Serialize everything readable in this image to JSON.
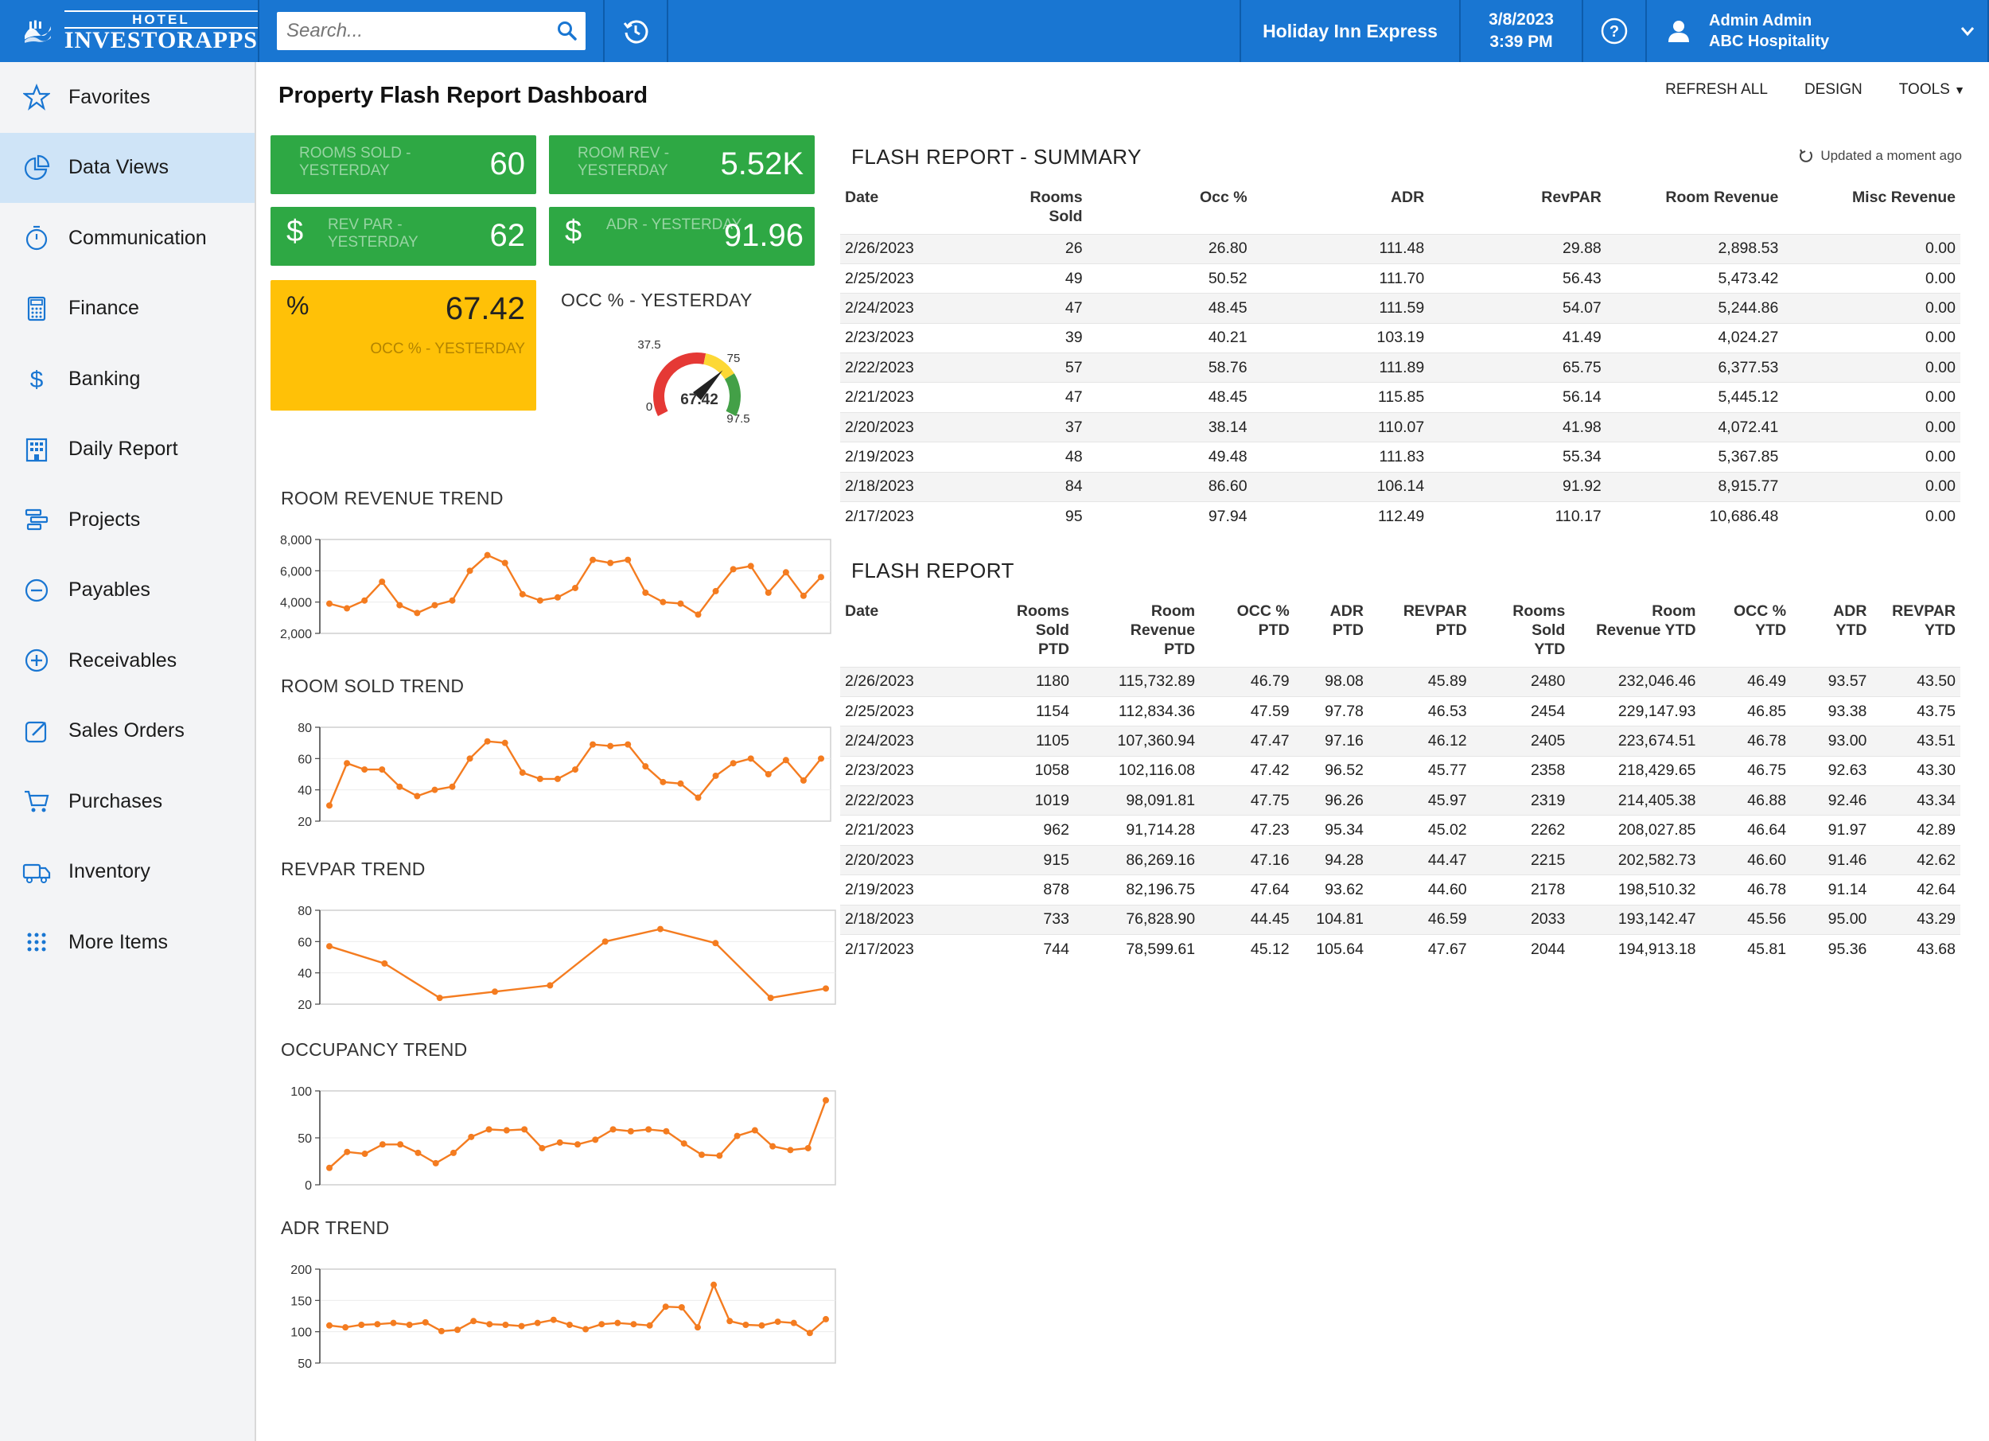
{
  "brand": {
    "top": "HOTEL",
    "bottom": "INVESTORAPPS"
  },
  "search": {
    "placeholder": "Search..."
  },
  "header": {
    "property": "Holiday Inn Express",
    "date": "3/8/2023",
    "time": "3:39 PM",
    "user_name": "Admin Admin",
    "company": "ABC Hospitality"
  },
  "sidebar": {
    "items": [
      {
        "label": "Favorites",
        "icon": "star-icon"
      },
      {
        "label": "Data Views",
        "icon": "pie-chart-icon"
      },
      {
        "label": "Communication",
        "icon": "stopwatch-icon"
      },
      {
        "label": "Finance",
        "icon": "calculator-icon"
      },
      {
        "label": "Banking",
        "icon": "dollar-icon"
      },
      {
        "label": "Daily Report",
        "icon": "building-icon"
      },
      {
        "label": "Projects",
        "icon": "projects-icon"
      },
      {
        "label": "Payables",
        "icon": "minus-circle-icon"
      },
      {
        "label": "Receivables",
        "icon": "plus-circle-icon"
      },
      {
        "label": "Sales Orders",
        "icon": "edit-icon"
      },
      {
        "label": "Purchases",
        "icon": "cart-icon"
      },
      {
        "label": "Inventory",
        "icon": "truck-icon"
      },
      {
        "label": "More Items",
        "icon": "grid-dots-icon"
      }
    ],
    "active_index": 1
  },
  "page": {
    "title": "Property Flash Report Dashboard",
    "refresh_all": "REFRESH ALL",
    "design": "DESIGN",
    "tools": "TOOLS"
  },
  "kpis": {
    "rooms_sold": {
      "label": "ROOMS SOLD - YESTERDAY",
      "value": "60"
    },
    "room_rev": {
      "label": "ROOM REV - YESTERDAY",
      "value": "5.52K"
    },
    "revpar": {
      "label": "REV PAR - YESTERDAY",
      "value": "62"
    },
    "adr": {
      "label": "ADR - YESTERDAY",
      "value": "91.96"
    },
    "occ": {
      "symbol": "%",
      "value": "67.42",
      "label": "OCC % - YESTERDAY"
    },
    "colors": {
      "green": "#2ea844",
      "yellow": "#ffc107"
    }
  },
  "gauge": {
    "title": "OCC % - YESTERDAY",
    "value": "67.42",
    "numeric_value": 67.42,
    "min_label": "0",
    "mid_label": "37.5",
    "upper_label": "75",
    "max_label": "97.5",
    "min": 0,
    "max": 97.5
  },
  "charts": {
    "room_revenue": {
      "title": "ROOM REVENUE TREND",
      "ticks": [
        "8,000",
        "6,000",
        "4,000",
        "2,000"
      ]
    },
    "room_sold": {
      "title": "ROOM SOLD TREND",
      "ticks": [
        "80",
        "60",
        "40",
        "20"
      ]
    },
    "revpar": {
      "title": "REVPAR TREND",
      "ticks": [
        "80",
        "60",
        "40",
        "20"
      ]
    },
    "occupancy": {
      "title": "OCCUPANCY TREND",
      "ticks": [
        "100",
        "50",
        "0"
      ]
    },
    "adr": {
      "title": "ADR TREND",
      "ticks": [
        "200",
        "150",
        "100",
        "50"
      ]
    }
  },
  "chart_data": [
    {
      "type": "line",
      "title": "ROOM REVENUE TREND",
      "ylim": [
        2000,
        8000
      ],
      "values": [
        3900,
        3600,
        4100,
        5300,
        3800,
        3300,
        3800,
        4100,
        6000,
        7000,
        6500,
        4500,
        4100,
        4300,
        4900,
        6700,
        6500,
        6700,
        4600,
        4000,
        3900,
        3200,
        4700,
        6100,
        6300,
        4600,
        5900,
        4400,
        5600
      ]
    },
    {
      "type": "line",
      "title": "ROOM SOLD TREND",
      "ylim": [
        20,
        80
      ],
      "values": [
        30,
        57,
        53,
        53,
        42,
        36,
        40,
        42,
        60,
        71,
        70,
        51,
        47,
        47,
        53,
        69,
        68,
        69,
        55,
        45,
        44,
        35,
        49,
        57,
        60,
        50,
        59,
        46,
        60
      ]
    },
    {
      "type": "line",
      "title": "REVPAR TREND",
      "ylim": [
        20,
        80
      ],
      "values": [
        57,
        46,
        24,
        28,
        32,
        60,
        68,
        59,
        24,
        30
      ]
    },
    {
      "type": "line",
      "title": "OCCUPANCY TREND",
      "ylim": [
        0,
        100
      ],
      "values": [
        18,
        35,
        33,
        43,
        43,
        34,
        23,
        34,
        51,
        59,
        58,
        59,
        39,
        45,
        43,
        48,
        59,
        57,
        59,
        57,
        44,
        32,
        31,
        52,
        58,
        41,
        37,
        39,
        90
      ]
    },
    {
      "type": "line",
      "title": "ADR TREND",
      "ylim": [
        50,
        200
      ],
      "values": [
        110,
        107,
        111,
        112,
        114,
        111,
        115,
        101,
        103,
        117,
        112,
        111,
        109,
        114,
        119,
        111,
        104,
        112,
        114,
        112,
        110,
        140,
        139,
        107,
        175,
        117,
        111,
        110,
        116,
        114,
        98,
        120
      ]
    }
  ],
  "summary": {
    "title": "FLASH REPORT - SUMMARY",
    "updated": "Updated a moment ago",
    "columns": [
      "Date",
      "Rooms Sold",
      "Occ %",
      "ADR",
      "RevPAR",
      "Room Revenue",
      "Misc Revenue"
    ],
    "rows": [
      [
        "2/26/2023",
        "26",
        "26.80",
        "111.48",
        "29.88",
        "2,898.53",
        "0.00"
      ],
      [
        "2/25/2023",
        "49",
        "50.52",
        "111.70",
        "56.43",
        "5,473.42",
        "0.00"
      ],
      [
        "2/24/2023",
        "47",
        "48.45",
        "111.59",
        "54.07",
        "5,244.86",
        "0.00"
      ],
      [
        "2/23/2023",
        "39",
        "40.21",
        "103.19",
        "41.49",
        "4,024.27",
        "0.00"
      ],
      [
        "2/22/2023",
        "57",
        "58.76",
        "111.89",
        "65.75",
        "6,377.53",
        "0.00"
      ],
      [
        "2/21/2023",
        "47",
        "48.45",
        "115.85",
        "56.14",
        "5,445.12",
        "0.00"
      ],
      [
        "2/20/2023",
        "37",
        "38.14",
        "110.07",
        "41.98",
        "4,072.41",
        "0.00"
      ],
      [
        "2/19/2023",
        "48",
        "49.48",
        "111.83",
        "55.34",
        "5,367.85",
        "0.00"
      ],
      [
        "2/18/2023",
        "84",
        "86.60",
        "106.14",
        "91.92",
        "8,915.77",
        "0.00"
      ],
      [
        "2/17/2023",
        "95",
        "97.94",
        "112.49",
        "110.17",
        "10,686.48",
        "0.00"
      ]
    ]
  },
  "flash": {
    "title": "FLASH REPORT",
    "columns": [
      "Date",
      "Rooms Sold PTD",
      "Room Revenue PTD",
      "OCC % PTD",
      "ADR PTD",
      "REVPAR PTD",
      "Rooms Sold YTD",
      "Room Revenue YTD",
      "OCC % YTD",
      "ADR YTD",
      "REVPAR YTD"
    ],
    "rows": [
      [
        "2/26/2023",
        "1180",
        "115,732.89",
        "46.79",
        "98.08",
        "45.89",
        "2480",
        "232,046.46",
        "46.49",
        "93.57",
        "43.50"
      ],
      [
        "2/25/2023",
        "1154",
        "112,834.36",
        "47.59",
        "97.78",
        "46.53",
        "2454",
        "229,147.93",
        "46.85",
        "93.38",
        "43.75"
      ],
      [
        "2/24/2023",
        "1105",
        "107,360.94",
        "47.47",
        "97.16",
        "46.12",
        "2405",
        "223,674.51",
        "46.78",
        "93.00",
        "43.51"
      ],
      [
        "2/23/2023",
        "1058",
        "102,116.08",
        "47.42",
        "96.52",
        "45.77",
        "2358",
        "218,429.65",
        "46.75",
        "92.63",
        "43.30"
      ],
      [
        "2/22/2023",
        "1019",
        "98,091.81",
        "47.75",
        "96.26",
        "45.97",
        "2319",
        "214,405.38",
        "46.88",
        "92.46",
        "43.34"
      ],
      [
        "2/21/2023",
        "962",
        "91,714.28",
        "47.23",
        "95.34",
        "45.02",
        "2262",
        "208,027.85",
        "46.64",
        "91.97",
        "42.89"
      ],
      [
        "2/20/2023",
        "915",
        "86,269.16",
        "47.16",
        "94.28",
        "44.47",
        "2215",
        "202,582.73",
        "46.60",
        "91.46",
        "42.62"
      ],
      [
        "2/19/2023",
        "878",
        "82,196.75",
        "47.64",
        "93.62",
        "44.60",
        "2178",
        "198,510.32",
        "46.78",
        "91.14",
        "42.64"
      ],
      [
        "2/18/2023",
        "733",
        "76,828.90",
        "44.45",
        "104.81",
        "46.59",
        "2033",
        "193,142.47",
        "45.56",
        "95.00",
        "43.29"
      ],
      [
        "2/17/2023",
        "744",
        "78,599.61",
        "45.12",
        "105.64",
        "47.67",
        "2044",
        "194,913.18",
        "45.81",
        "95.36",
        "43.68"
      ]
    ]
  }
}
